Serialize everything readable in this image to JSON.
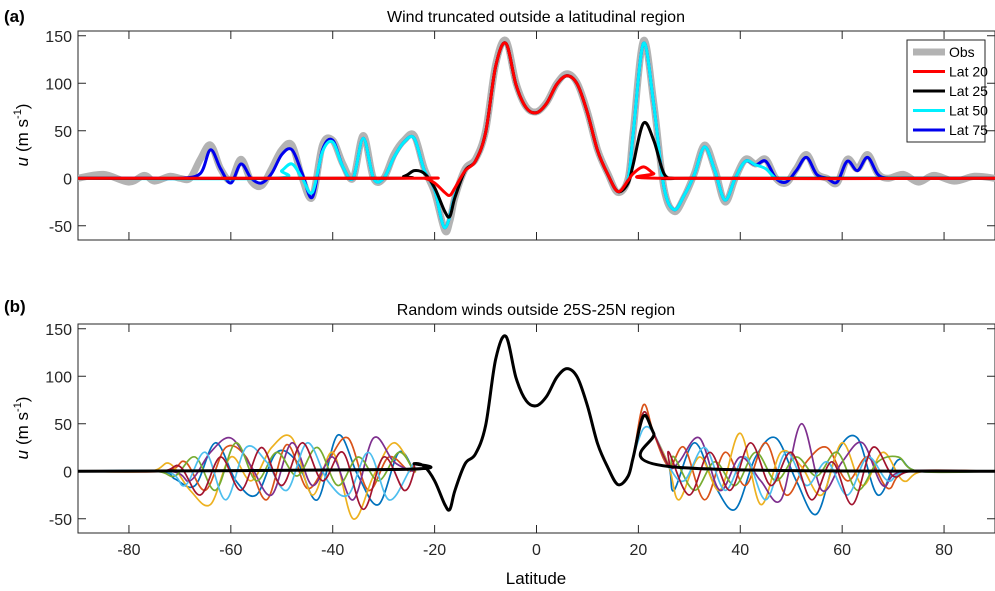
{
  "figure": {
    "xlabel": "Latitude",
    "panel_a_label": "(a)",
    "panel_b_label": "(b)",
    "ylabel": {
      "var": "u",
      "pre": "(m s",
      "sup": "-1",
      "post": ")"
    }
  },
  "chart_data": [
    {
      "type": "line",
      "panel": "(a)",
      "title": "Wind truncated outside a latitudinal region",
      "xlim": [
        -90,
        90
      ],
      "ylim": [
        -65,
        155
      ],
      "xticks": [
        -80,
        -60,
        -40,
        -20,
        0,
        20,
        40,
        60,
        80
      ],
      "yticks": [
        -50,
        0,
        50,
        100,
        150
      ],
      "show_xticklabels": false,
      "grid": false,
      "legend_position": "top-right",
      "series": [
        {
          "name": "Obs",
          "color": "#b3b3b3",
          "width": 7,
          "in_legend": true,
          "x": [
            -90,
            -85,
            -80,
            -77,
            -75,
            -72,
            -70,
            -68,
            -66,
            -64,
            -62,
            -60,
            -58,
            -56,
            -54,
            -52,
            -50,
            -48,
            -46,
            -44,
            -42,
            -40,
            -38,
            -36,
            -34,
            -32,
            -30,
            -28,
            -26,
            -24,
            -22,
            -20,
            -18,
            -17,
            -16,
            -14,
            -12,
            -10,
            -8,
            -6,
            -4,
            -2,
            0,
            2,
            4,
            6,
            8,
            10,
            12,
            14,
            16,
            18,
            19,
            21,
            23,
            25,
            27,
            29,
            31,
            33,
            35,
            37,
            39,
            41,
            43,
            45,
            47,
            49,
            51,
            53,
            55,
            57,
            59,
            61,
            63,
            65,
            67,
            69,
            72,
            75,
            78,
            82,
            86,
            90
          ],
          "y": [
            0,
            4,
            -4,
            3,
            -3,
            2,
            0,
            0,
            20,
            35,
            10,
            -2,
            20,
            -3,
            -8,
            10,
            30,
            35,
            0,
            -20,
            35,
            40,
            15,
            0,
            45,
            0,
            0,
            25,
            40,
            45,
            10,
            -15,
            -55,
            -45,
            -20,
            10,
            20,
            50,
            120,
            145,
            100,
            75,
            70,
            80,
            100,
            110,
            100,
            70,
            30,
            5,
            -15,
            0,
            50,
            145,
            80,
            -10,
            -35,
            -20,
            5,
            35,
            10,
            -25,
            0,
            20,
            15,
            20,
            0,
            -5,
            10,
            25,
            5,
            0,
            -5,
            20,
            10,
            25,
            5,
            0,
            4,
            -4,
            3,
            -3,
            2,
            0
          ]
        },
        {
          "name": "Lat 75",
          "color": "#0000ee",
          "width": 3,
          "in_legend": true,
          "x": [
            -90,
            -78,
            -75,
            -70,
            -66,
            -64,
            -62,
            -60,
            -58,
            -56,
            -54,
            -52,
            -50,
            -48,
            -46,
            -44,
            -42,
            -40,
            -38,
            -36,
            -34,
            -32,
            -30,
            -28,
            -26,
            -24,
            -22,
            -20,
            -18,
            -16,
            -14,
            -12,
            -10,
            -8,
            -6,
            -4,
            -2,
            0,
            2,
            4,
            6,
            8,
            10,
            12,
            14,
            16,
            18,
            19,
            21,
            23,
            25,
            27,
            29,
            31,
            33,
            35,
            37,
            39,
            41,
            43,
            45,
            47,
            49,
            51,
            53,
            55,
            57,
            59,
            61,
            63,
            65,
            67,
            69,
            72,
            75,
            78,
            90
          ],
          "y": [
            0,
            0,
            0,
            0,
            5,
            30,
            10,
            -5,
            15,
            0,
            -5,
            5,
            25,
            30,
            5,
            -20,
            30,
            40,
            12,
            0,
            42,
            0,
            0,
            22,
            38,
            42,
            8,
            -12,
            -52,
            -18,
            8,
            18,
            48,
            118,
            142,
            98,
            74,
            69,
            79,
            99,
            108,
            99,
            69,
            29,
            4,
            -14,
            0,
            48,
            142,
            78,
            -9,
            -33,
            -18,
            4,
            33,
            8,
            -23,
            0,
            18,
            14,
            18,
            0,
            -4,
            8,
            22,
            4,
            0,
            -4,
            18,
            8,
            22,
            4,
            0,
            0,
            0,
            0,
            0
          ]
        },
        {
          "name": "Lat 50",
          "color": "#00f0ff",
          "width": 3,
          "in_legend": true,
          "x": [
            -90,
            -52,
            -50,
            -48,
            -46,
            -44,
            -42,
            -40,
            -38,
            -36,
            -34,
            -32,
            -30,
            -28,
            -26,
            -24,
            -22,
            -20,
            -18,
            -16,
            -14,
            -12,
            -10,
            -8,
            -6,
            -4,
            -2,
            0,
            2,
            4,
            6,
            8,
            10,
            12,
            14,
            16,
            18,
            19,
            21,
            23,
            25,
            27,
            29,
            31,
            33,
            35,
            37,
            39,
            41,
            43,
            45,
            47,
            49,
            51,
            90
          ],
          "y": [
            0,
            0,
            8,
            15,
            0,
            -15,
            28,
            38,
            12,
            0,
            42,
            0,
            0,
            22,
            38,
            42,
            8,
            -12,
            -52,
            -18,
            8,
            18,
            48,
            118,
            142,
            98,
            74,
            69,
            79,
            99,
            108,
            99,
            69,
            29,
            4,
            -14,
            0,
            48,
            142,
            78,
            -9,
            -33,
            -18,
            4,
            33,
            8,
            -23,
            0,
            18,
            14,
            10,
            0,
            0,
            0,
            0
          ]
        },
        {
          "name": "Lat 25",
          "color": "#000000",
          "width": 3,
          "in_legend": true,
          "x": [
            -90,
            -30,
            -26,
            -24,
            -22,
            -20,
            -18,
            -17,
            -16,
            -14,
            -12,
            -10,
            -8,
            -6,
            -4,
            -2,
            0,
            2,
            4,
            6,
            8,
            10,
            12,
            14,
            16,
            18,
            19,
            21,
            23,
            25,
            27,
            30,
            90
          ],
          "y": [
            0,
            0,
            2,
            8,
            5,
            -10,
            -35,
            -40,
            -20,
            8,
            18,
            48,
            118,
            142,
            98,
            74,
            69,
            79,
            99,
            108,
            99,
            69,
            29,
            4,
            -14,
            -5,
            15,
            58,
            40,
            5,
            0,
            0,
            0
          ]
        },
        {
          "name": "Lat 20",
          "color": "#ff0000",
          "width": 3,
          "in_legend": true,
          "x": [
            -90,
            -25,
            -22,
            -20,
            -18,
            -17,
            -16,
            -14,
            -12,
            -10,
            -8,
            -6,
            -4,
            -2,
            0,
            2,
            4,
            6,
            8,
            10,
            12,
            14,
            16,
            18,
            19,
            21,
            23,
            25,
            90
          ],
          "y": [
            0,
            0,
            0,
            -5,
            -15,
            -18,
            -10,
            8,
            18,
            48,
            118,
            142,
            98,
            74,
            69,
            79,
            99,
            108,
            99,
            69,
            29,
            4,
            -14,
            -2,
            5,
            12,
            5,
            0,
            0
          ]
        }
      ]
    },
    {
      "type": "line",
      "panel": "(b)",
      "title": "Random winds outside 25S-25N region",
      "xlabel": "Latitude",
      "xlim": [
        -90,
        90
      ],
      "ylim": [
        -65,
        155
      ],
      "xticks": [
        -80,
        -60,
        -40,
        -20,
        0,
        20,
        40,
        60,
        80
      ],
      "yticks": [
        -50,
        0,
        50,
        100,
        150
      ],
      "show_xticklabels": true,
      "grid": false,
      "legend_position": "none",
      "core": {
        "x": [
          -26,
          -24,
          -22,
          -20,
          -18,
          -17,
          -16,
          -14,
          -12,
          -10,
          -8,
          -6,
          -4,
          -2,
          0,
          2,
          4,
          6,
          8,
          10,
          12,
          14,
          16,
          18,
          19,
          21,
          23,
          26
        ],
        "y": [
          2,
          8,
          5,
          -10,
          -35,
          -40,
          -20,
          8,
          18,
          48,
          118,
          142,
          98,
          74,
          69,
          79,
          99,
          108,
          99,
          69,
          29,
          4,
          -14,
          -5,
          15,
          58,
          40,
          5
        ]
      },
      "series": [
        {
          "color": "#0072bd",
          "width": 1.7,
          "x": [
            -74,
            -71,
            -67,
            -63,
            -59,
            -55,
            -51,
            -47,
            -43,
            -39,
            -35,
            -31,
            -27,
            -24,
            24,
            27,
            31,
            35,
            39,
            43,
            47,
            51,
            55,
            59,
            63,
            67,
            71,
            75
          ],
          "y": [
            0,
            -8,
            -15,
            30,
            -10,
            -25,
            20,
            10,
            -30,
            38,
            -5,
            -35,
            20,
            0,
            0,
            -20,
            30,
            -15,
            -40,
            15,
            35,
            -10,
            -45,
            20,
            35,
            -25,
            12,
            0
          ]
        },
        {
          "color": "#d95319",
          "width": 1.7,
          "x": [
            -73,
            -69,
            -65,
            -61,
            -57,
            -53,
            -49,
            -45,
            -41,
            -37,
            -33,
            -29,
            -25,
            25,
            29,
            33,
            37,
            41,
            45,
            49,
            53,
            57,
            61,
            65,
            69,
            73
          ],
          "y": [
            0,
            10,
            -20,
            25,
            15,
            -30,
            28,
            -18,
            10,
            35,
            -20,
            15,
            0,
            0,
            25,
            -30,
            20,
            -15,
            30,
            -25,
            10,
            25,
            -10,
            15,
            -18,
            0
          ],
          "peak": 70
        },
        {
          "color": "#edb120",
          "width": 1.7,
          "x": [
            -76,
            -72,
            -68,
            -64,
            -60,
            -56,
            -52,
            -48,
            -44,
            -40,
            -36,
            -32,
            -28,
            -24,
            24,
            28,
            32,
            36,
            40,
            44,
            48,
            52,
            56,
            60,
            64,
            68,
            72,
            76
          ],
          "y": [
            0,
            8,
            -20,
            -35,
            15,
            -10,
            25,
            35,
            -25,
            20,
            -50,
            -5,
            30,
            0,
            0,
            -30,
            15,
            -20,
            40,
            -35,
            20,
            5,
            -25,
            30,
            -15,
            20,
            -10,
            0
          ]
        },
        {
          "color": "#7e2f8e",
          "width": 1.7,
          "x": [
            -72,
            -68,
            -64,
            -60,
            -56,
            -52,
            -48,
            -44,
            -40,
            -36,
            -32,
            -28,
            -24,
            24,
            28,
            32,
            36,
            40,
            44,
            48,
            52,
            56,
            60,
            64,
            68,
            72
          ],
          "y": [
            0,
            -10,
            20,
            35,
            5,
            -25,
            30,
            -15,
            15,
            -30,
            35,
            10,
            0,
            0,
            10,
            35,
            -20,
            15,
            -10,
            -30,
            50,
            -20,
            10,
            30,
            -15,
            0
          ]
        },
        {
          "color": "#77ac30",
          "width": 1.7,
          "x": [
            -75,
            -71,
            -67,
            -63,
            -59,
            -55,
            -51,
            -47,
            -43,
            -39,
            -35,
            -31,
            -27,
            -24,
            24,
            27,
            31,
            35,
            39,
            43,
            47,
            51,
            55,
            59,
            63,
            67,
            71,
            75
          ],
          "y": [
            0,
            -5,
            15,
            -20,
            30,
            -10,
            20,
            -5,
            25,
            -15,
            15,
            -10,
            20,
            0,
            0,
            15,
            -20,
            10,
            -15,
            20,
            -10,
            15,
            -5,
            20,
            -20,
            10,
            15,
            0
          ]
        },
        {
          "color": "#4dbeee",
          "width": 1.7,
          "x": [
            -73,
            -69,
            -65,
            -61,
            -57,
            -53,
            -49,
            -45,
            -41,
            -37,
            -33,
            -29,
            -25,
            25,
            29,
            33,
            37,
            41,
            45,
            49,
            53,
            57,
            61,
            65,
            69,
            73
          ],
          "y": [
            0,
            -15,
            20,
            -30,
            25,
            10,
            -20,
            30,
            -10,
            -25,
            20,
            -30,
            0,
            0,
            -10,
            25,
            -20,
            15,
            -30,
            20,
            -15,
            10,
            -25,
            15,
            -10,
            0
          ],
          "peak": 45
        },
        {
          "color": "#a2142f",
          "width": 1.7,
          "x": [
            -74,
            -70,
            -66,
            -62,
            -58,
            -54,
            -50,
            -46,
            -42,
            -38,
            -34,
            -30,
            -26,
            -24,
            24,
            26,
            30,
            34,
            38,
            42,
            46,
            50,
            54,
            58,
            62,
            66,
            70,
            74
          ],
          "y": [
            0,
            5,
            -25,
            15,
            -20,
            25,
            -15,
            30,
            -10,
            20,
            -40,
            15,
            -20,
            0,
            0,
            20,
            -25,
            20,
            -20,
            30,
            -15,
            20,
            -30,
            10,
            -35,
            25,
            -5,
            0
          ],
          "peak": 62
        }
      ]
    }
  ]
}
